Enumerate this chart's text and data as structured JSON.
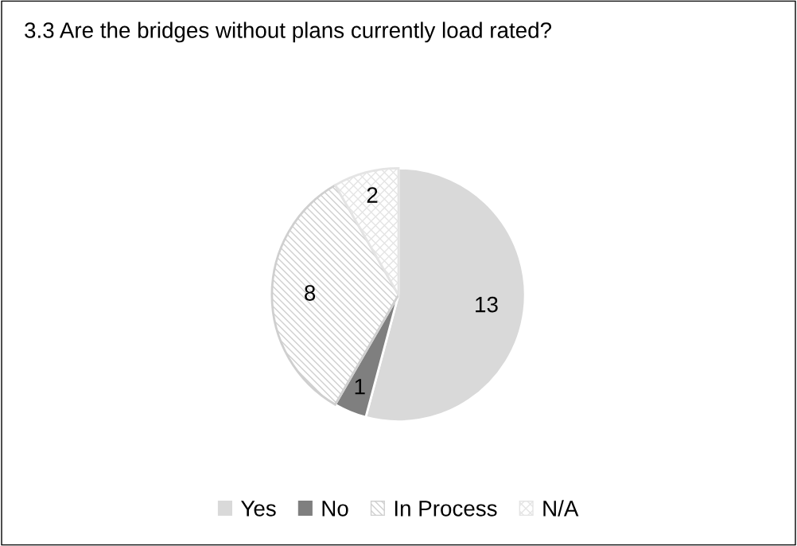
{
  "chart_data": {
    "type": "pie",
    "title": "3.3 Are the bridges without plans currently load rated?",
    "categories": [
      "Yes",
      "No",
      "In Process",
      "N/A"
    ],
    "values": [
      13,
      1,
      8,
      2
    ],
    "colors": [
      "#d9d9d9",
      "#7f7f7f",
      "#cfcfcf",
      "#e4e4e4"
    ],
    "data_labels": true,
    "legend": "bottom"
  }
}
